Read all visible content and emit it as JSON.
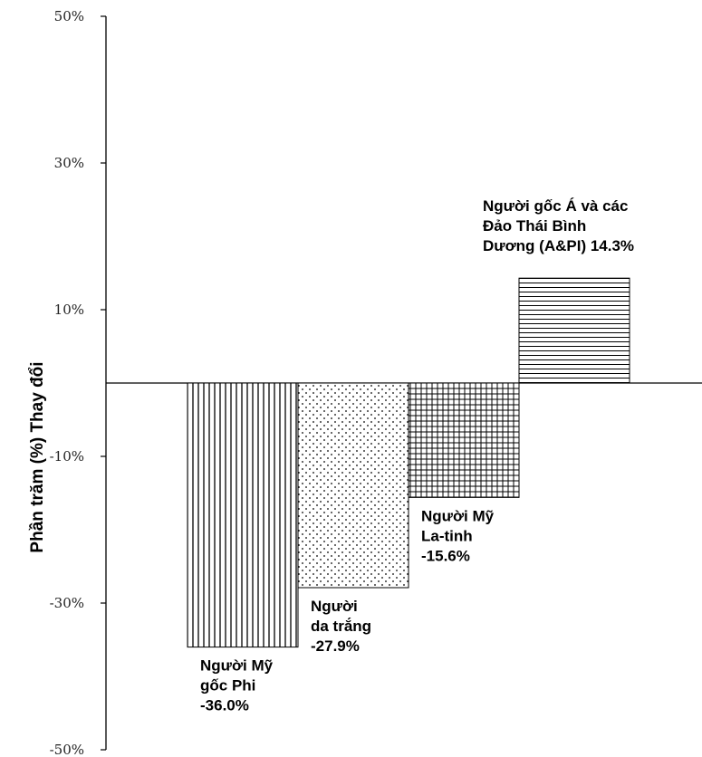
{
  "chart_data": {
    "type": "bar",
    "ylabel": "Phần trăm (%) Thay đổi",
    "ylim": [
      -50,
      50
    ],
    "yticks": [
      {
        "value": 50,
        "label": "50%"
      },
      {
        "value": 30,
        "label": "30%"
      },
      {
        "value": 10,
        "label": "10%"
      },
      {
        "value": -10,
        "label": "-10%"
      },
      {
        "value": -30,
        "label": "-30%"
      },
      {
        "value": -50,
        "label": "-50%"
      }
    ],
    "grid": false,
    "legend": "none",
    "bars": [
      {
        "pattern": "vertical-lines",
        "value": -36.0,
        "label_lines": [
          "Người Mỹ",
          "gốc Phi",
          "-36.0%"
        ]
      },
      {
        "pattern": "dots",
        "value": -27.9,
        "label_lines": [
          "Người",
          "da trắng",
          "-27.9%"
        ]
      },
      {
        "pattern": "grid",
        "value": -15.6,
        "label_lines": [
          "Người Mỹ",
          "La-tinh",
          "-15.6%"
        ]
      },
      {
        "pattern": "horizontal-lines",
        "value": 14.3,
        "label_lines": [
          "Người gốc Á và các",
          "Đảo Thái Bình",
          "Dương (A&PI) 14.3%"
        ]
      }
    ]
  }
}
